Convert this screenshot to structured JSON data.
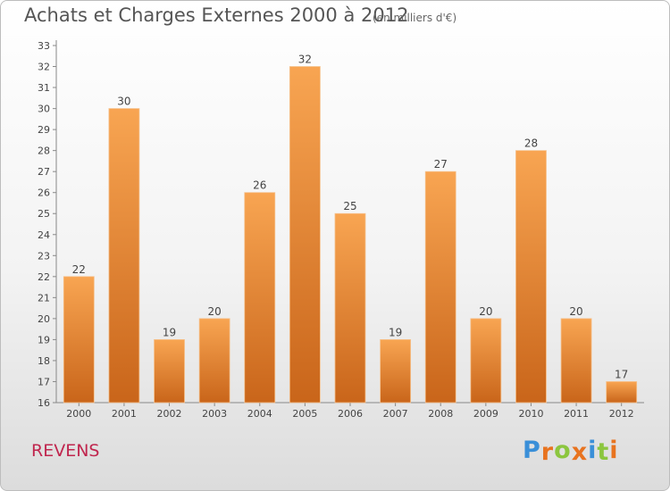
{
  "title": "Achats et Charges Externes 2000 à 2012",
  "subtitle": "(en milliers d'€)",
  "city": "REVENS",
  "logo": {
    "text": "Proxiti",
    "letters": [
      {
        "ch": "P",
        "color": "#3a8fd8"
      },
      {
        "ch": "r",
        "color": "#e8731f"
      },
      {
        "ch": "o",
        "color": "#8cc63f"
      },
      {
        "ch": "x",
        "color": "#e8731f"
      },
      {
        "ch": "i",
        "color": "#3a8fd8"
      },
      {
        "ch": "t",
        "color": "#8cc63f"
      },
      {
        "ch": "i",
        "color": "#e8731f"
      }
    ]
  },
  "chart_data": {
    "type": "bar",
    "title": "Achats et Charges Externes 2000 à 2012",
    "subtitle": "(en milliers d'€)",
    "categories": [
      "2000",
      "2001",
      "2002",
      "2003",
      "2004",
      "2005",
      "2006",
      "2007",
      "2008",
      "2009",
      "2010",
      "2011",
      "2012"
    ],
    "values": [
      22,
      30,
      19,
      20,
      26,
      32,
      25,
      19,
      27,
      20,
      28,
      20,
      17
    ],
    "ylim": [
      16,
      33
    ],
    "yticks": [
      16,
      17,
      18,
      19,
      20,
      21,
      22,
      23,
      24,
      25,
      26,
      27,
      28,
      29,
      30,
      31,
      32,
      33
    ],
    "grid": false,
    "colors": {
      "bar_light": "#f8a552",
      "bar_dark": "#c9651a",
      "axis": "#888888",
      "text": "#444444"
    }
  }
}
